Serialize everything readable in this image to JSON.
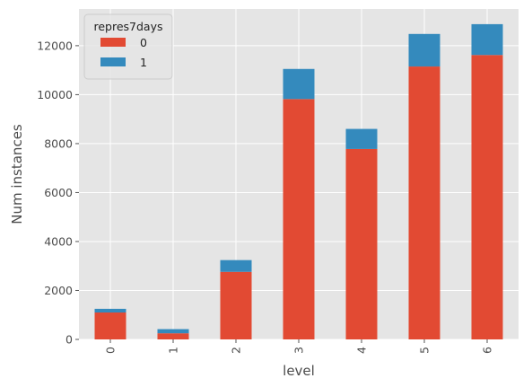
{
  "chart_data": {
    "type": "bar",
    "stacked": true,
    "categories": [
      "0",
      "1",
      "2",
      "3",
      "4",
      "5",
      "6"
    ],
    "series": [
      {
        "name": "0",
        "values": [
          1100,
          250,
          2760,
          9820,
          7780,
          11150,
          11620
        ],
        "color": "#E24A33"
      },
      {
        "name": "1",
        "values": [
          150,
          170,
          480,
          1230,
          820,
          1330,
          1260
        ],
        "color": "#348ABD"
      }
    ],
    "xlabel": "level",
    "ylabel": "Num instances",
    "ylim": [
      0,
      13500
    ],
    "yticks": [
      0,
      2000,
      4000,
      6000,
      8000,
      10000,
      12000
    ],
    "legend_title": "repres7days",
    "legend_position": "top-left",
    "grid": true,
    "background": "#E5E5E5"
  }
}
